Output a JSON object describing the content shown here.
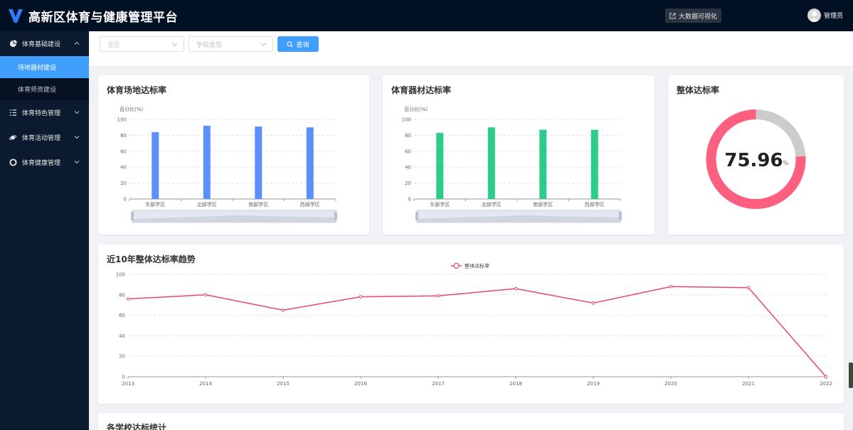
{
  "header": {
    "title": "高新区体育与健康管理平台",
    "bigdata_label": "大数据可视化",
    "user_name": "管理员",
    "logo_color": "#2f7cf6"
  },
  "sidebar": {
    "items": [
      {
        "label": "体育基础建设",
        "icon": "pie-icon",
        "expanded": true,
        "children": [
          {
            "label": "场地器材建设",
            "active": true
          },
          {
            "label": "体育师资建设",
            "active": false
          }
        ]
      },
      {
        "label": "体育特色管理",
        "icon": "list-icon",
        "expanded": false
      },
      {
        "label": "体育活动管理",
        "icon": "planet-icon",
        "expanded": false
      },
      {
        "label": "体育健康管理",
        "icon": "life-ring-icon",
        "expanded": false
      }
    ]
  },
  "filters": {
    "district_placeholder": "全区",
    "school_type_placeholder": "学校类型",
    "query_label": "查询"
  },
  "colors": {
    "venue_bar": "#5b8ff9",
    "equipment_bar": "#2ecc8a",
    "gauge_fill": "#ff5f7e",
    "gauge_rest": "#cccccc",
    "trend_line": "#e8457a",
    "accent": "#409eff"
  },
  "venue_card": {
    "title": "体育场地达标率"
  },
  "equipment_card": {
    "title": "体育器材达标率"
  },
  "overall_card": {
    "title": "整体达标率",
    "value": "75.96",
    "unit": "%"
  },
  "trend_card": {
    "title": "近10年整体达标率趋势"
  },
  "schools_card": {
    "title": "各学校达标统计"
  },
  "chart_data": [
    {
      "id": "venue",
      "type": "bar",
      "ylabel": "百分比(%)",
      "categories": [
        "东部学区",
        "北部学区",
        "南部学区",
        "西部学区"
      ],
      "values": [
        84,
        92,
        91,
        90
      ],
      "ylim": [
        0,
        100
      ],
      "yticks": [
        0,
        20,
        40,
        60,
        80,
        100
      ],
      "grid": true,
      "datazoom": true
    },
    {
      "id": "equipment",
      "type": "bar",
      "ylabel": "百分比(%)",
      "categories": [
        "东部学区",
        "北部学区",
        "南部学区",
        "西部学区"
      ],
      "values": [
        83,
        90,
        87,
        87
      ],
      "ylim": [
        0,
        100
      ],
      "yticks": [
        0,
        20,
        40,
        60,
        80,
        100
      ],
      "grid": true,
      "datazoom": true
    },
    {
      "id": "overall",
      "type": "pie",
      "values": [
        75.96,
        24.04
      ]
    },
    {
      "id": "trend",
      "type": "line",
      "x": [
        "2013",
        "2014",
        "2015",
        "2016",
        "2017",
        "2018",
        "2019",
        "2020",
        "2021",
        "2022"
      ],
      "series": [
        {
          "name": "整体达标率",
          "values": [
            76,
            80,
            65,
            78,
            79,
            86,
            72,
            88,
            87,
            0
          ]
        }
      ],
      "ylim": [
        0,
        100
      ],
      "yticks": [
        0,
        20,
        40,
        60,
        80,
        100
      ],
      "grid": true,
      "legend": "top-center"
    }
  ]
}
